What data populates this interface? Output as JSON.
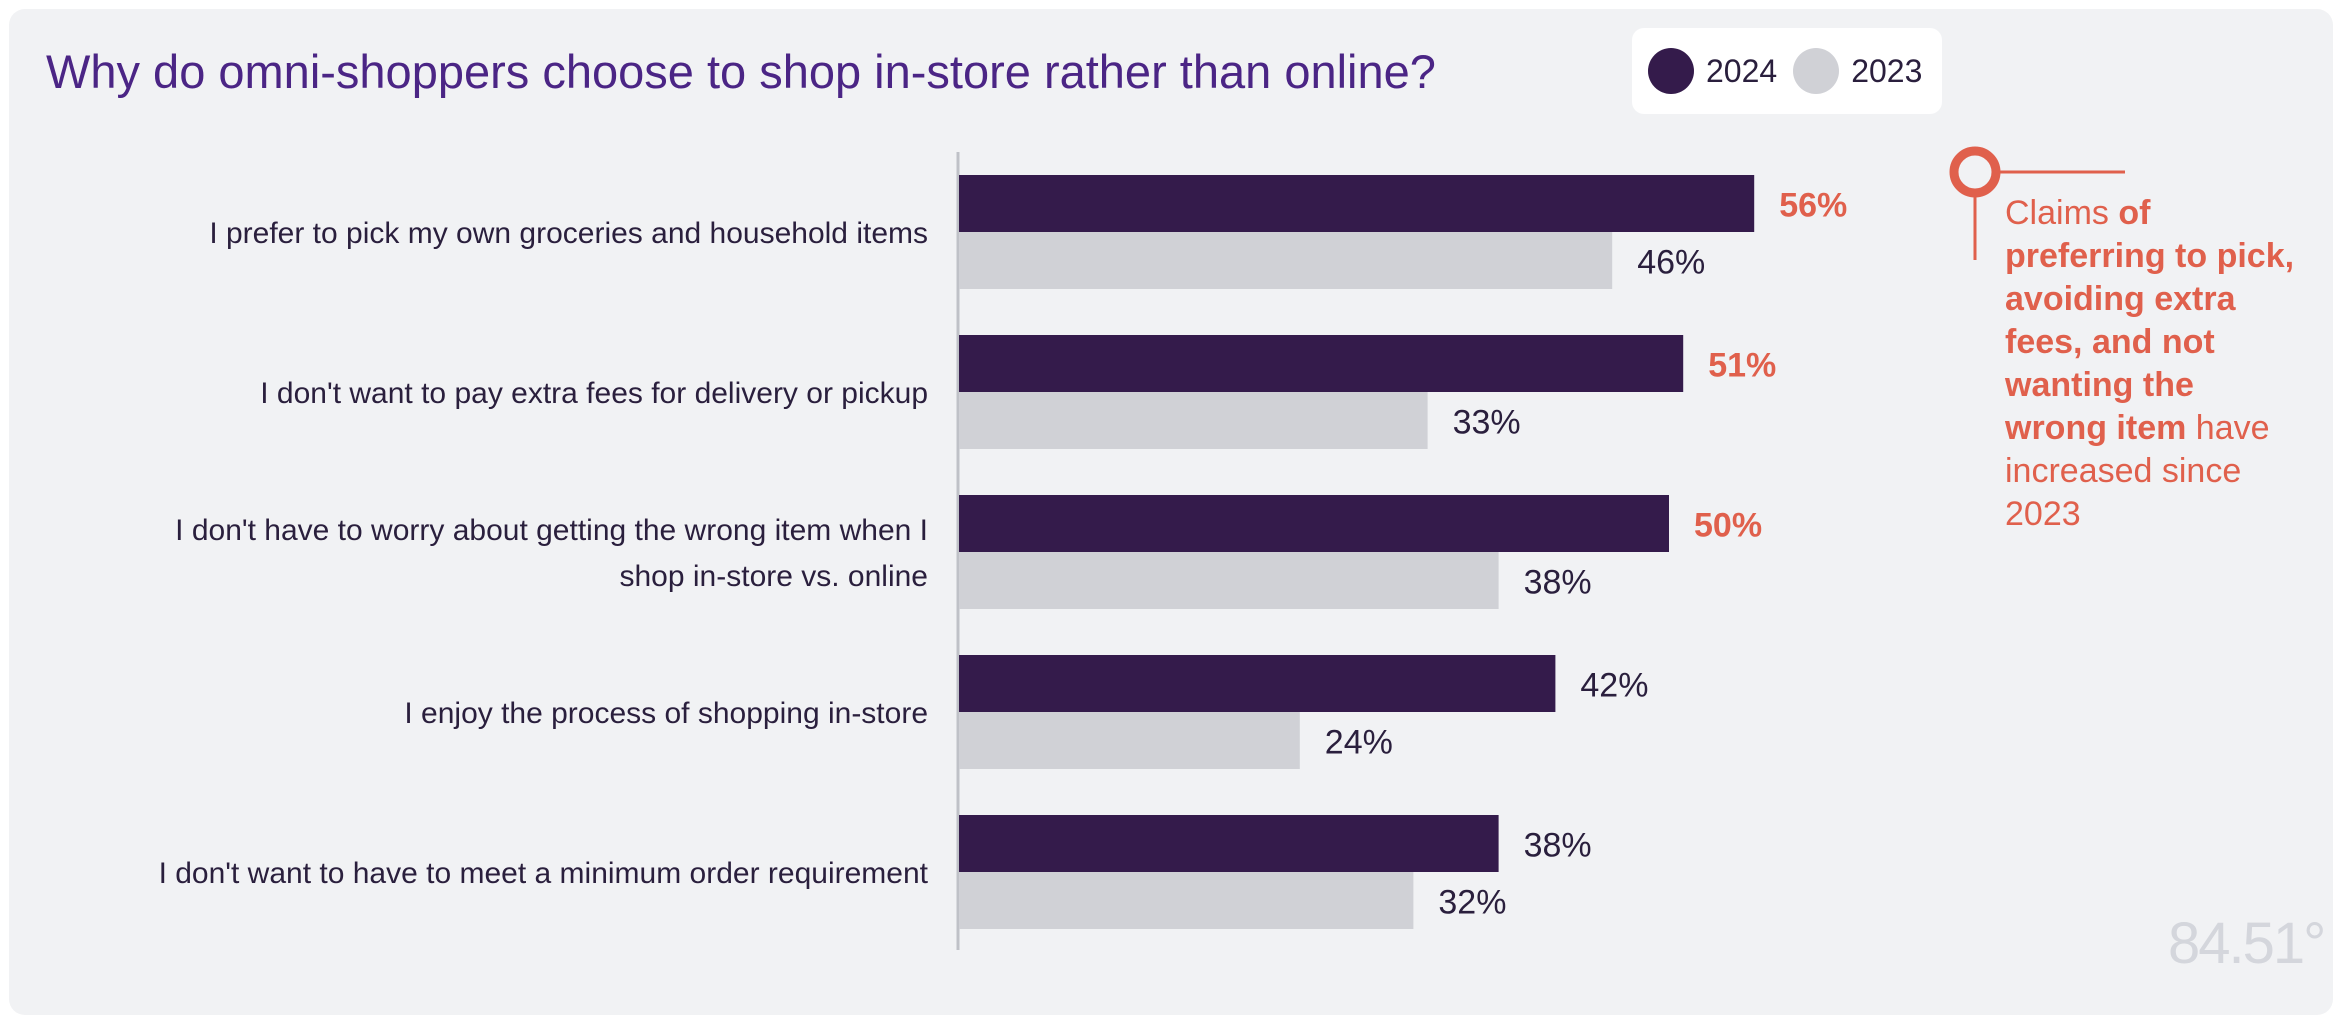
{
  "chart_data": {
    "type": "bar",
    "orientation": "horizontal",
    "title": "Why do omni-shoppers choose to shop in-store rather than online?",
    "categories": [
      [
        "I prefer to pick my own groceries and household items"
      ],
      [
        "I don't want to pay extra fees for delivery or pickup"
      ],
      [
        "I don't have to worry about getting the wrong item when I",
        "shop in-store vs. online"
      ],
      [
        "I enjoy the process of shopping in-store"
      ],
      [
        "I don't want to have to meet a minimum order requirement"
      ]
    ],
    "series": [
      {
        "name": "2024",
        "color": "#341b4b",
        "values": [
          56,
          51,
          50,
          42,
          38
        ],
        "labels": [
          "56%",
          "51%",
          "50%",
          "42%",
          "38%"
        ],
        "label_colors": [
          "#e0604c",
          "#e0604c",
          "#e0604c",
          "#2a1f3d",
          "#2a1f3d"
        ]
      },
      {
        "name": "2023",
        "color": "#d0d1d6",
        "values": [
          46,
          33,
          38,
          24,
          32
        ],
        "labels": [
          "46%",
          "33%",
          "38%",
          "24%",
          "32%"
        ],
        "label_colors": [
          "#2a1f3d",
          "#2a1f3d",
          "#2a1f3d",
          "#2a1f3d",
          "#2a1f3d"
        ]
      }
    ],
    "xlim": [
      0,
      100
    ],
    "grid": false,
    "legend": "top-right"
  },
  "legend": {
    "items": [
      {
        "label": "2024",
        "color": "#341b4b"
      },
      {
        "label": "2023",
        "color": "#d0d1d6"
      }
    ]
  },
  "annotation": {
    "color": "#e0604c",
    "parts": [
      {
        "text": "Claims ",
        "bold": false
      },
      {
        "text": "of preferring to pick, avoiding extra fees, and not wanting the wrong item",
        "bold": true
      },
      {
        "text": " have increased since 2023",
        "bold": false
      }
    ]
  },
  "logo": {
    "text": "84.51°"
  }
}
